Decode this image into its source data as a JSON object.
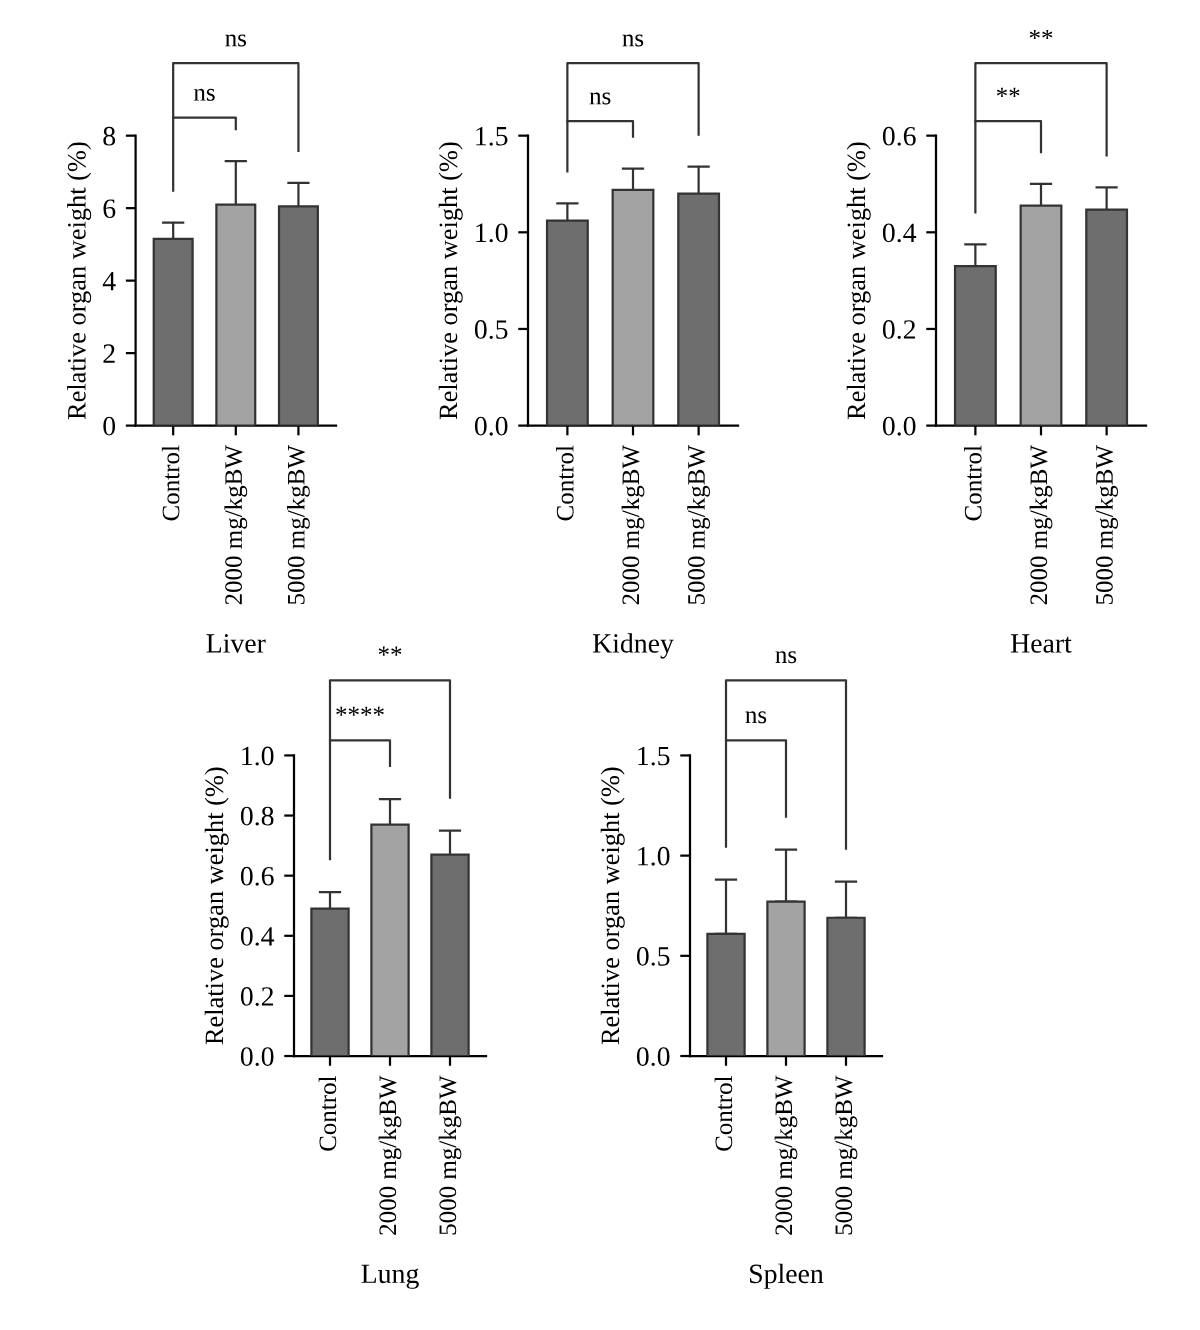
{
  "chart_data": [
    {
      "type": "bar",
      "xlabel": "Liver",
      "ylabel": "Relative organ weight (%)",
      "categories": [
        "Control",
        "2000 mg/kgBW",
        "5000 mg/kgBW"
      ],
      "values": [
        5.15,
        6.1,
        6.05
      ],
      "errors": [
        0.45,
        1.2,
        0.65
      ],
      "colors": [
        "#6e6e6e",
        "#a3a3a3",
        "#6e6e6e"
      ],
      "ylim": [
        0,
        8
      ],
      "yticks": [
        0,
        2,
        4,
        6,
        8
      ],
      "annotations": [
        "ns",
        "ns"
      ]
    },
    {
      "type": "bar",
      "xlabel": "Kidney",
      "ylabel": "Relative organ weight (%)",
      "categories": [
        "Control",
        "2000 mg/kgBW",
        "5000 mg/kgBW"
      ],
      "values": [
        1.06,
        1.22,
        1.2
      ],
      "errors": [
        0.09,
        0.11,
        0.14
      ],
      "colors": [
        "#6e6e6e",
        "#a3a3a3",
        "#6e6e6e"
      ],
      "ylim": [
        0,
        1.5
      ],
      "yticks": [
        {
          "value": 0,
          "label": "0.0"
        },
        {
          "value": 0.5,
          "label": "0.5"
        },
        {
          "value": 1,
          "label": "1.0"
        },
        {
          "value": 1.5,
          "label": "1.5"
        }
      ],
      "annotations": [
        "ns",
        "ns"
      ]
    },
    {
      "type": "bar",
      "xlabel": "Heart",
      "ylabel": "Relative organ weight (%)",
      "categories": [
        "Control",
        "2000 mg/kgBW",
        "5000 mg/kgBW"
      ],
      "values": [
        0.33,
        0.455,
        0.447
      ],
      "errors": [
        0.045,
        0.045,
        0.046
      ],
      "colors": [
        "#6e6e6e",
        "#a3a3a3",
        "#6e6e6e"
      ],
      "ylim": [
        0,
        0.6
      ],
      "yticks": [
        {
          "value": 0,
          "label": "0.0"
        },
        0.2,
        0.4,
        0.6
      ],
      "annotations": [
        "**",
        "**"
      ]
    },
    {
      "type": "bar",
      "xlabel": "Lung",
      "ylabel": "Relative organ weight (%)",
      "categories": [
        "Control",
        "2000 mg/kgBW",
        "5000 mg/kgBW"
      ],
      "values": [
        0.49,
        0.77,
        0.67
      ],
      "errors": [
        0.055,
        0.085,
        0.08
      ],
      "colors": [
        "#6e6e6e",
        "#a3a3a3",
        "#6e6e6e"
      ],
      "ylim": [
        0,
        1.0
      ],
      "yticks": [
        {
          "value": 0,
          "label": "0.0"
        },
        0.2,
        0.4,
        0.6,
        0.8,
        {
          "value": 1,
          "label": "1.0"
        }
      ],
      "annotations": [
        "****",
        "**"
      ]
    },
    {
      "type": "bar",
      "xlabel": "Spleen",
      "ylabel": "Relative organ weight (%)",
      "categories": [
        "Control",
        "2000 mg/kgBW",
        "5000 mg/kgBW"
      ],
      "values": [
        0.61,
        0.77,
        0.69
      ],
      "errors": [
        [
          0.61,
          0.88
        ],
        [
          0.77,
          1.03
        ],
        [
          0.69,
          0.87
        ]
      ],
      "colors": [
        "#6e6e6e",
        "#a3a3a3",
        "#6e6e6e"
      ],
      "ylim": [
        0,
        1.5
      ],
      "yticks": [
        {
          "value": 0,
          "label": "0.0"
        },
        {
          "value": 0.5,
          "label": "0.5"
        },
        {
          "value": 1,
          "label": "1.0"
        },
        {
          "value": 1.5,
          "label": "1.5"
        }
      ],
      "annotations": [
        "ns",
        "ns"
      ]
    }
  ]
}
